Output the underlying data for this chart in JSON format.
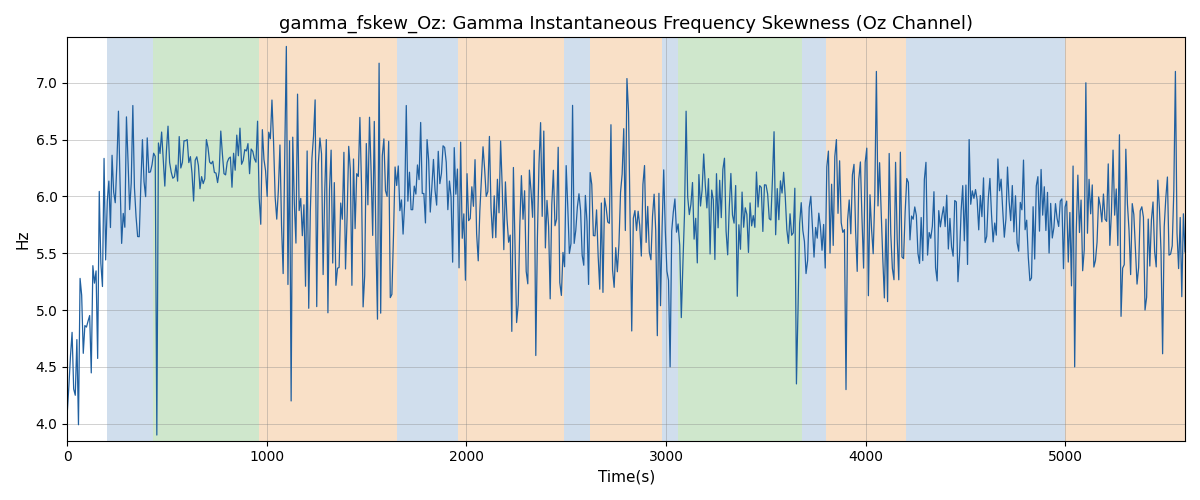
{
  "title": "gamma_fskew_Oz: Gamma Instantaneous Frequency Skewness (Oz Channel)",
  "xlabel": "Time(s)",
  "ylabel": "Hz",
  "xlim": [
    0,
    5600
  ],
  "ylim": [
    3.85,
    7.4
  ],
  "line_color": "#2060a0",
  "line_width": 0.9,
  "background_color": "#ffffff",
  "grid": true,
  "colored_bands": [
    {
      "xstart": 200,
      "xend": 430,
      "color": "#aac4df",
      "alpha": 0.55
    },
    {
      "xstart": 430,
      "xend": 960,
      "color": "#a8d5a2",
      "alpha": 0.55
    },
    {
      "xstart": 960,
      "xend": 1650,
      "color": "#f5c89a",
      "alpha": 0.55
    },
    {
      "xstart": 1650,
      "xend": 1960,
      "color": "#aac4df",
      "alpha": 0.55
    },
    {
      "xstart": 1960,
      "xend": 2490,
      "color": "#f5c89a",
      "alpha": 0.55
    },
    {
      "xstart": 2490,
      "xend": 2620,
      "color": "#aac4df",
      "alpha": 0.55
    },
    {
      "xstart": 2620,
      "xend": 2980,
      "color": "#f5c89a",
      "alpha": 0.55
    },
    {
      "xstart": 2980,
      "xend": 3060,
      "color": "#aac4df",
      "alpha": 0.55
    },
    {
      "xstart": 3060,
      "xend": 3680,
      "color": "#a8d5a2",
      "alpha": 0.55
    },
    {
      "xstart": 3680,
      "xend": 3800,
      "color": "#aac4df",
      "alpha": 0.55
    },
    {
      "xstart": 3800,
      "xend": 4200,
      "color": "#f5c89a",
      "alpha": 0.55
    },
    {
      "xstart": 4200,
      "xend": 5000,
      "color": "#aac4df",
      "alpha": 0.55
    },
    {
      "xstart": 5000,
      "xend": 5600,
      "color": "#f5c89a",
      "alpha": 0.55
    }
  ]
}
